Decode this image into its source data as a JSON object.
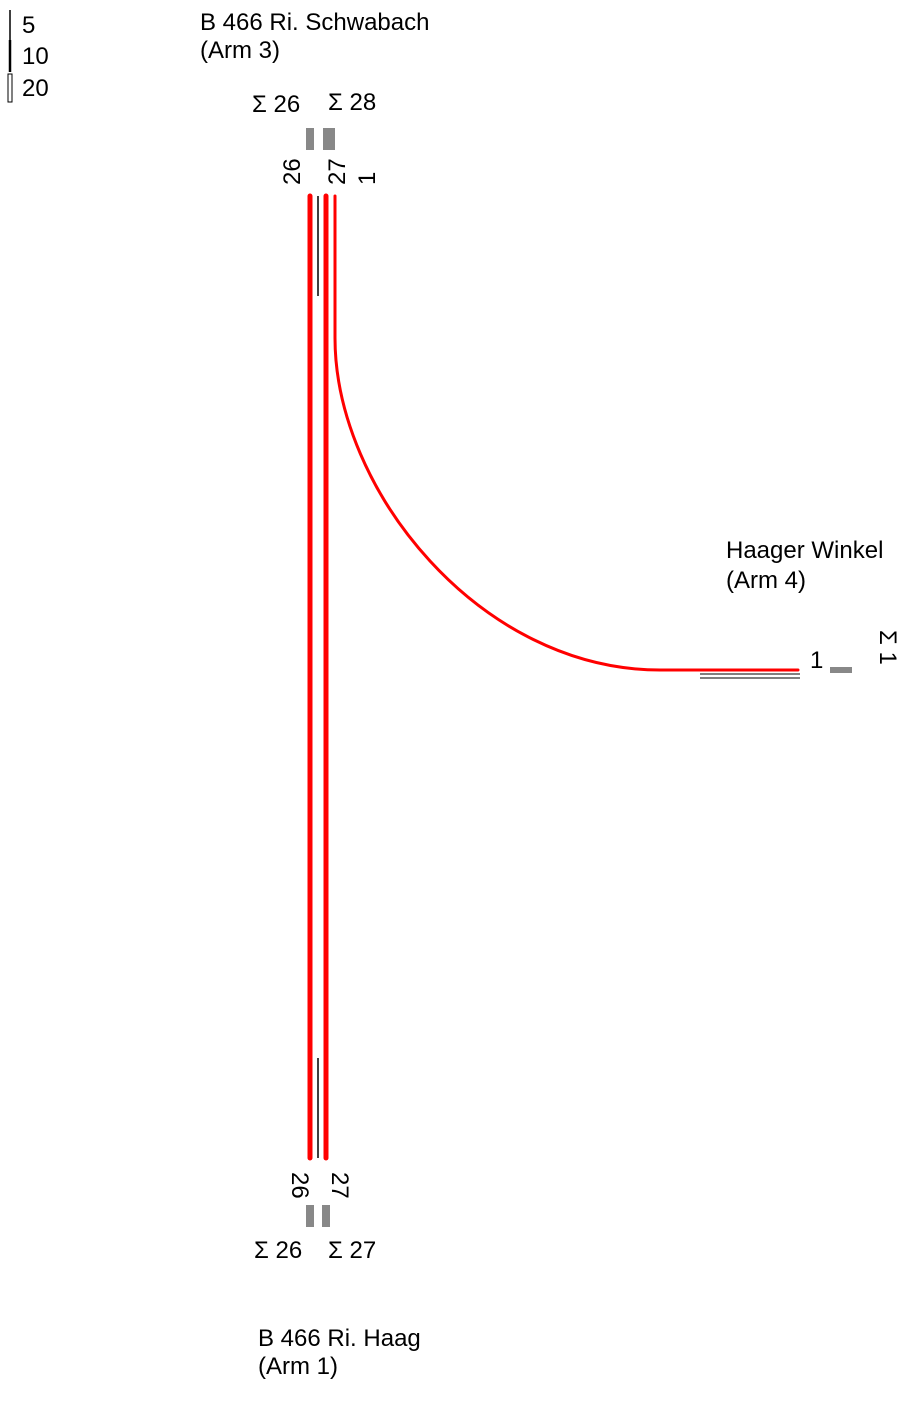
{
  "colors": {
    "flow": "#ff0000",
    "bar": "#888888",
    "line": "#000000",
    "background": "#ffffff"
  },
  "legend": [
    {
      "label": "5"
    },
    {
      "label": "10"
    },
    {
      "label": "20"
    }
  ],
  "arms": {
    "arm3": {
      "name": "B 466 Ri. Schwabach",
      "arm": "(Arm 3)"
    },
    "arm4": {
      "name": "Haager Winkel",
      "arm": "(Arm 4)"
    },
    "arm1": {
      "name": "B 466 Ri. Haag",
      "arm": "(Arm 1)"
    }
  },
  "flows": [
    {
      "from": "B 466 Ri. Haag (Arm 1)",
      "to": "B 466 Ri. Schwabach (Arm 3)",
      "value": 26
    },
    {
      "from": "B 466 Ri. Schwabach (Arm 3)",
      "to": "B 466 Ri. Haag (Arm 1)",
      "value": 27
    },
    {
      "from": "B 466 Ri. Schwabach (Arm 3)",
      "to": "Haager Winkel (Arm 4)",
      "value": 1
    }
  ],
  "arm3_labels": {
    "sum_left": "Σ 26",
    "sum_right": "Σ 28",
    "lane_26": "26",
    "lane_27": "27",
    "lane_1": "1"
  },
  "arm1_labels": {
    "sum_left": "Σ 26",
    "sum_right": "Σ 27",
    "lane_26": "26",
    "lane_27": "27"
  },
  "arm4_labels": {
    "lane_1": "1",
    "sum": "Σ 1"
  }
}
